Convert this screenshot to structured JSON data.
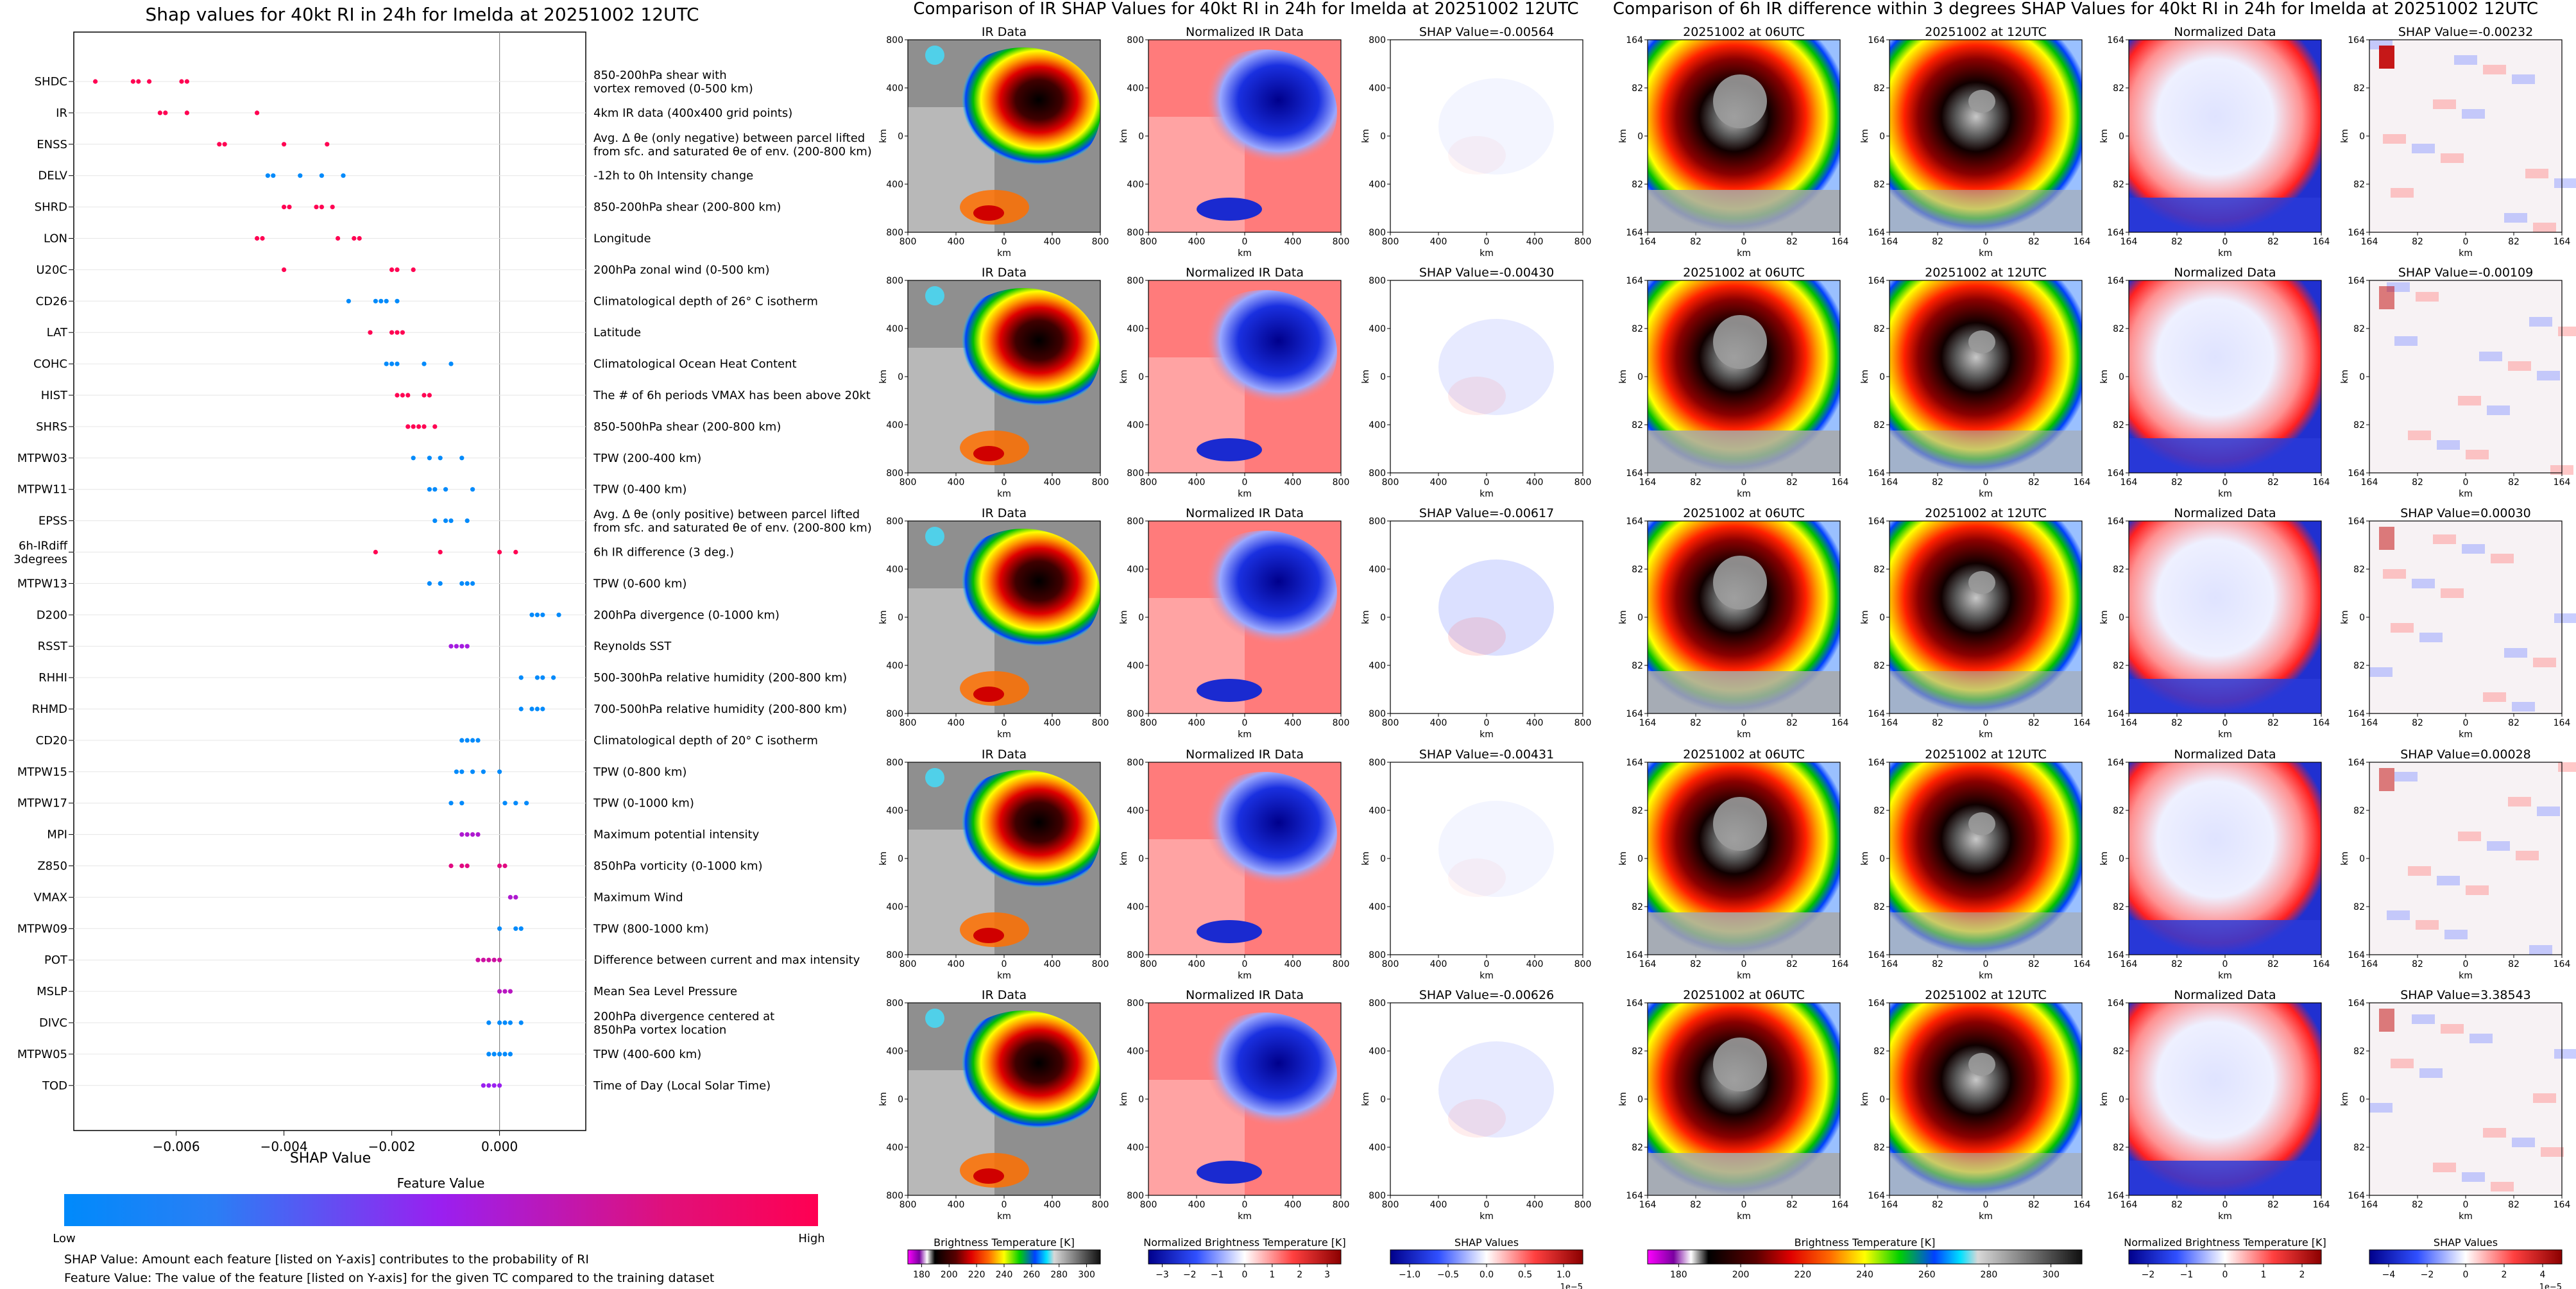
{
  "colors": {
    "low": "#008afb",
    "mid": "#9a1ff0",
    "high": "#ff0052"
  },
  "left_panel": {
    "title": "Shap values for 40kt RI in 24h for Imelda at 20251002 12UTC",
    "xlabel": "SHAP Value",
    "xticks": [
      "−0.006",
      "−0.004",
      "−0.002",
      "0.000"
    ],
    "colorbar_label": "Feature Value",
    "colorbar_low": "Low",
    "colorbar_high": "High",
    "note1": "SHAP Value: Amount each feature [listed on Y-axis] contributes to the probability of RI",
    "note2": "Feature Value: The value of the feature [listed on Y-axis] for the given TC compared to the training dataset"
  },
  "middle_panel": {
    "title": "Comparison of IR SHAP Values for 40kt RI in 24h for Imelda at 20251002 12UTC",
    "col_titles": [
      "IR Data",
      "Normalized IR Data"
    ],
    "shap_titles": [
      "SHAP Value=-0.00564",
      "SHAP Value=-0.00430",
      "SHAP Value=-0.00617",
      "SHAP Value=-0.00431",
      "SHAP Value=-0.00626"
    ],
    "axis_unit": "km",
    "ticks": [
      "800",
      "400",
      "0",
      "400",
      "800"
    ],
    "cbar_labels": [
      "Brightness Temperature [K]",
      "Normalized Brightness Temperature [K]",
      "SHAP Values"
    ],
    "cbar1_ticks": [
      "180",
      "200",
      "220",
      "240",
      "260",
      "280",
      "300"
    ],
    "cbar2_ticks": [
      "−3",
      "−2",
      "−1",
      "0",
      "1",
      "2",
      "3"
    ],
    "cbar3_ticks": [
      "−1.0",
      "−0.5",
      "0.0",
      "0.5",
      "1.0"
    ],
    "cbar3_exp": "1e−5"
  },
  "right_panel": {
    "title": "Comparison of 6h IR difference within 3 degrees SHAP Values for 40kt RI in 24h for Imelda at 20251002 12UTC",
    "col_titles": [
      "20251002 at 06UTC",
      "20251002 at 12UTC",
      "Normalized Data"
    ],
    "shap_titles": [
      "SHAP Value=-0.00232",
      "SHAP Value=-0.00109",
      "SHAP Value=0.00030",
      "SHAP Value=0.00028",
      "SHAP Value=3.38543"
    ],
    "axis_unit": "km",
    "ticks": [
      "164",
      "82",
      "0",
      "82",
      "164"
    ],
    "cbar_labels": [
      "Brightness Temperature [K]",
      "Normalized Brightness Temperature [K]",
      "SHAP Values"
    ],
    "cbar1_ticks": [
      "180",
      "200",
      "220",
      "240",
      "260",
      "280",
      "300"
    ],
    "cbar2_ticks": [
      "−2",
      "−1",
      "0",
      "1",
      "2"
    ],
    "cbar3_ticks": [
      "−4",
      "−2",
      "0",
      "2",
      "4"
    ],
    "cbar3_exp": "1e−5"
  },
  "chart_data": {
    "type": "scatter",
    "title": "Shap values for 40kt RI in 24h for Imelda at 20251002 12UTC",
    "xlabel": "SHAP Value",
    "xlim": [
      -0.0079,
      0.0016
    ],
    "grid": false,
    "features": [
      {
        "name": "SHDC",
        "desc": [
          "850-200hPa shear with",
          "vortex removed (0-500 km)"
        ],
        "values": [
          -0.0075,
          -0.0068,
          -0.0067,
          -0.0065,
          -0.0059,
          -0.0058
        ],
        "fv": 1.0
      },
      {
        "name": "IR",
        "desc": [
          "4km IR data (400x400 grid points)"
        ],
        "values": [
          -0.0063,
          -0.0062,
          -0.0058,
          -0.0045
        ],
        "fv": 1.0
      },
      {
        "name": "ENSS",
        "desc": [
          "Avg. Δ θe (only negative) between parcel lifted",
          "from sfc. and saturated θe of env. (200-800 km)"
        ],
        "values": [
          -0.0052,
          -0.0051,
          -0.004,
          -0.0032
        ],
        "fv": 1.0
      },
      {
        "name": "DELV",
        "desc": [
          "-12h to 0h Intensity change"
        ],
        "values": [
          -0.0043,
          -0.0042,
          -0.0037,
          -0.0033,
          -0.0029
        ],
        "fv": 0.0
      },
      {
        "name": "SHRD",
        "desc": [
          "850-200hPa shear (200-800 km)"
        ],
        "values": [
          -0.004,
          -0.0039,
          -0.0034,
          -0.0033,
          -0.0031
        ],
        "fv": 1.0
      },
      {
        "name": "LON",
        "desc": [
          "Longitude"
        ],
        "values": [
          -0.0045,
          -0.0044,
          -0.003,
          -0.0027,
          -0.0026
        ],
        "fv": 1.0
      },
      {
        "name": "U20C",
        "desc": [
          "200hPa zonal wind (0-500 km)"
        ],
        "values": [
          -0.004,
          -0.002,
          -0.0019,
          -0.0016
        ],
        "fv": 1.0
      },
      {
        "name": "CD26",
        "desc": [
          "Climatological depth of 26° C isotherm"
        ],
        "values": [
          -0.0028,
          -0.0023,
          -0.0022,
          -0.0021,
          -0.0019
        ],
        "fv": 0.0
      },
      {
        "name": "LAT",
        "desc": [
          "Latitude"
        ],
        "values": [
          -0.0024,
          -0.002,
          -0.0019,
          -0.0018
        ],
        "fv": 1.0
      },
      {
        "name": "COHC",
        "desc": [
          "Climatological Ocean Heat Content"
        ],
        "values": [
          -0.0021,
          -0.002,
          -0.0019,
          -0.0014,
          -0.0009
        ],
        "fv": 0.0
      },
      {
        "name": "HIST",
        "desc": [
          "The # of 6h periods VMAX has been above 20kt"
        ],
        "values": [
          -0.0019,
          -0.0018,
          -0.0017,
          -0.0014,
          -0.0013
        ],
        "fv": 1.0
      },
      {
        "name": "SHRS",
        "desc": [
          "850-500hPa shear (200-800 km)"
        ],
        "values": [
          -0.0017,
          -0.0016,
          -0.0015,
          -0.0014,
          -0.0012
        ],
        "fv": 1.0
      },
      {
        "name": "MTPW03",
        "desc": [
          "TPW (200-400 km)"
        ],
        "values": [
          -0.0016,
          -0.0013,
          -0.0011,
          -0.0007
        ],
        "fv": 0.0
      },
      {
        "name": "MTPW11",
        "desc": [
          "TPW (0-400 km)"
        ],
        "values": [
          -0.0013,
          -0.0012,
          -0.001,
          -0.0005
        ],
        "fv": 0.0
      },
      {
        "name": "EPSS",
        "desc": [
          "Avg. Δ θe (only positive) between parcel lifted",
          "from sfc. and saturated θe of env. (200-800 km)"
        ],
        "values": [
          -0.0012,
          -0.001,
          -0.0009,
          -0.0006
        ],
        "fv": 0.0
      },
      {
        "name": "6h-IRdiff",
        "name2": "3degrees",
        "desc": [
          "6h IR difference (3 deg.)"
        ],
        "values": [
          -0.0023,
          -0.0011,
          0.0,
          0.0003
        ],
        "fv": 1.0
      },
      {
        "name": "MTPW13",
        "desc": [
          "TPW (0-600 km)"
        ],
        "values": [
          -0.0013,
          -0.0011,
          -0.0007,
          -0.0006,
          -0.0005
        ],
        "fv": 0.0
      },
      {
        "name": "D200",
        "desc": [
          "200hPa divergence (0-1000 km)"
        ],
        "values": [
          0.0006,
          0.0007,
          0.0008,
          0.0011
        ],
        "fv": 0.0
      },
      {
        "name": "RSST",
        "desc": [
          "Reynolds SST"
        ],
        "values": [
          -0.0009,
          -0.0008,
          -0.0007,
          -0.0006
        ],
        "fv": 0.55
      },
      {
        "name": "RHHI",
        "desc": [
          "500-300hPa relative humidity (200-800 km)"
        ],
        "values": [
          0.0004,
          0.0007,
          0.0008,
          0.001
        ],
        "fv": 0.0
      },
      {
        "name": "RHMD",
        "desc": [
          "700-500hPa relative humidity (200-800 km)"
        ],
        "values": [
          0.0004,
          0.0006,
          0.0007,
          0.0008
        ],
        "fv": 0.0
      },
      {
        "name": "CD20",
        "desc": [
          "Climatological depth of 20° C isotherm"
        ],
        "values": [
          -0.0007,
          -0.0006,
          -0.0005,
          -0.0004
        ],
        "fv": 0.0
      },
      {
        "name": "MTPW15",
        "desc": [
          "TPW (0-800 km)"
        ],
        "values": [
          -0.0008,
          -0.0007,
          -0.0005,
          -0.0003,
          0.0
        ],
        "fv": 0.0
      },
      {
        "name": "MTPW17",
        "desc": [
          "TPW (0-1000 km)"
        ],
        "values": [
          -0.0009,
          -0.0007,
          0.0001,
          0.0003,
          0.0005
        ],
        "fv": 0.0
      },
      {
        "name": "MPI",
        "desc": [
          "Maximum potential intensity"
        ],
        "values": [
          -0.0007,
          -0.0006,
          -0.0005,
          -0.0004
        ],
        "fv": 0.6
      },
      {
        "name": "Z850",
        "desc": [
          "850hPa vorticity (0-1000 km)"
        ],
        "values": [
          -0.0009,
          -0.0007,
          -0.0006,
          0.0,
          0.0001
        ],
        "fv": 0.85
      },
      {
        "name": "VMAX",
        "desc": [
          "Maximum Wind"
        ],
        "values": [
          0.0002,
          0.0003
        ],
        "fv": 0.6
      },
      {
        "name": "MTPW09",
        "desc": [
          "TPW (800-1000 km)"
        ],
        "values": [
          0.0,
          0.0003,
          0.0004
        ],
        "fv": 0.0
      },
      {
        "name": "POT",
        "desc": [
          "Difference between current and max intensity"
        ],
        "values": [
          -0.0004,
          -0.0003,
          -0.0002,
          -0.0001,
          0.0
        ],
        "fv": 0.75
      },
      {
        "name": "MSLP",
        "desc": [
          "Mean Sea Level Pressure"
        ],
        "values": [
          0.0,
          0.0001,
          0.0002
        ],
        "fv": 0.65
      },
      {
        "name": "DIVC",
        "desc": [
          "200hPa divergence centered at",
          "850hPa vortex location"
        ],
        "values": [
          -0.0002,
          0.0,
          0.0001,
          0.0002,
          0.0004
        ],
        "fv": 0.0
      },
      {
        "name": "MTPW05",
        "desc": [
          "TPW (400-600 km)"
        ],
        "values": [
          -0.0002,
          -0.0001,
          0.0,
          0.0001,
          0.0002
        ],
        "fv": 0.0
      },
      {
        "name": "TOD",
        "desc": [
          "Time of Day (Local Solar Time)"
        ],
        "values": [
          -0.0003,
          -0.0002,
          -0.0001,
          0.0
        ],
        "fv": 0.5
      }
    ]
  }
}
